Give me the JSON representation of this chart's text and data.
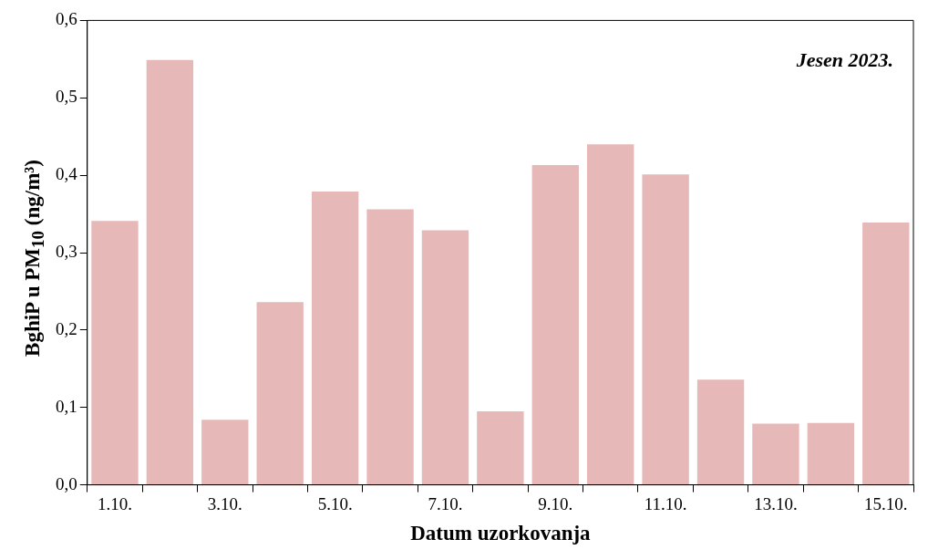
{
  "chart_data": {
    "type": "bar",
    "xlabel": "Datum uzorkovanja",
    "ylabel": "BghiP u PM$_{10}$ (ng/m³)",
    "annotations": [
      "Jesen 2023."
    ],
    "categories": [
      "1.10.",
      null,
      "3.10.",
      null,
      "5.10.",
      null,
      "7.10.",
      null,
      "9.10.",
      null,
      "11.10.",
      null,
      "13.10.",
      null,
      "15.10."
    ],
    "values": [
      0.341,
      0.549,
      0.084,
      0.236,
      0.379,
      0.356,
      0.329,
      0.095,
      0.413,
      0.44,
      0.401,
      0.136,
      0.079,
      0.08,
      0.339
    ],
    "color": "#e6b8b7",
    "ylim": [
      0,
      0.6
    ],
    "yticks": [
      {
        "value": 0,
        "label": "0,0"
      },
      {
        "value": 0.1,
        "label": "0,1"
      },
      {
        "value": 0.2,
        "label": "0,2"
      },
      {
        "value": 0.3,
        "label": "0,3"
      },
      {
        "value": 0.4,
        "label": "0,4"
      },
      {
        "value": 0.5,
        "label": "0,5"
      },
      {
        "value": 0.6,
        "label": "0,6"
      }
    ],
    "grid": false
  }
}
